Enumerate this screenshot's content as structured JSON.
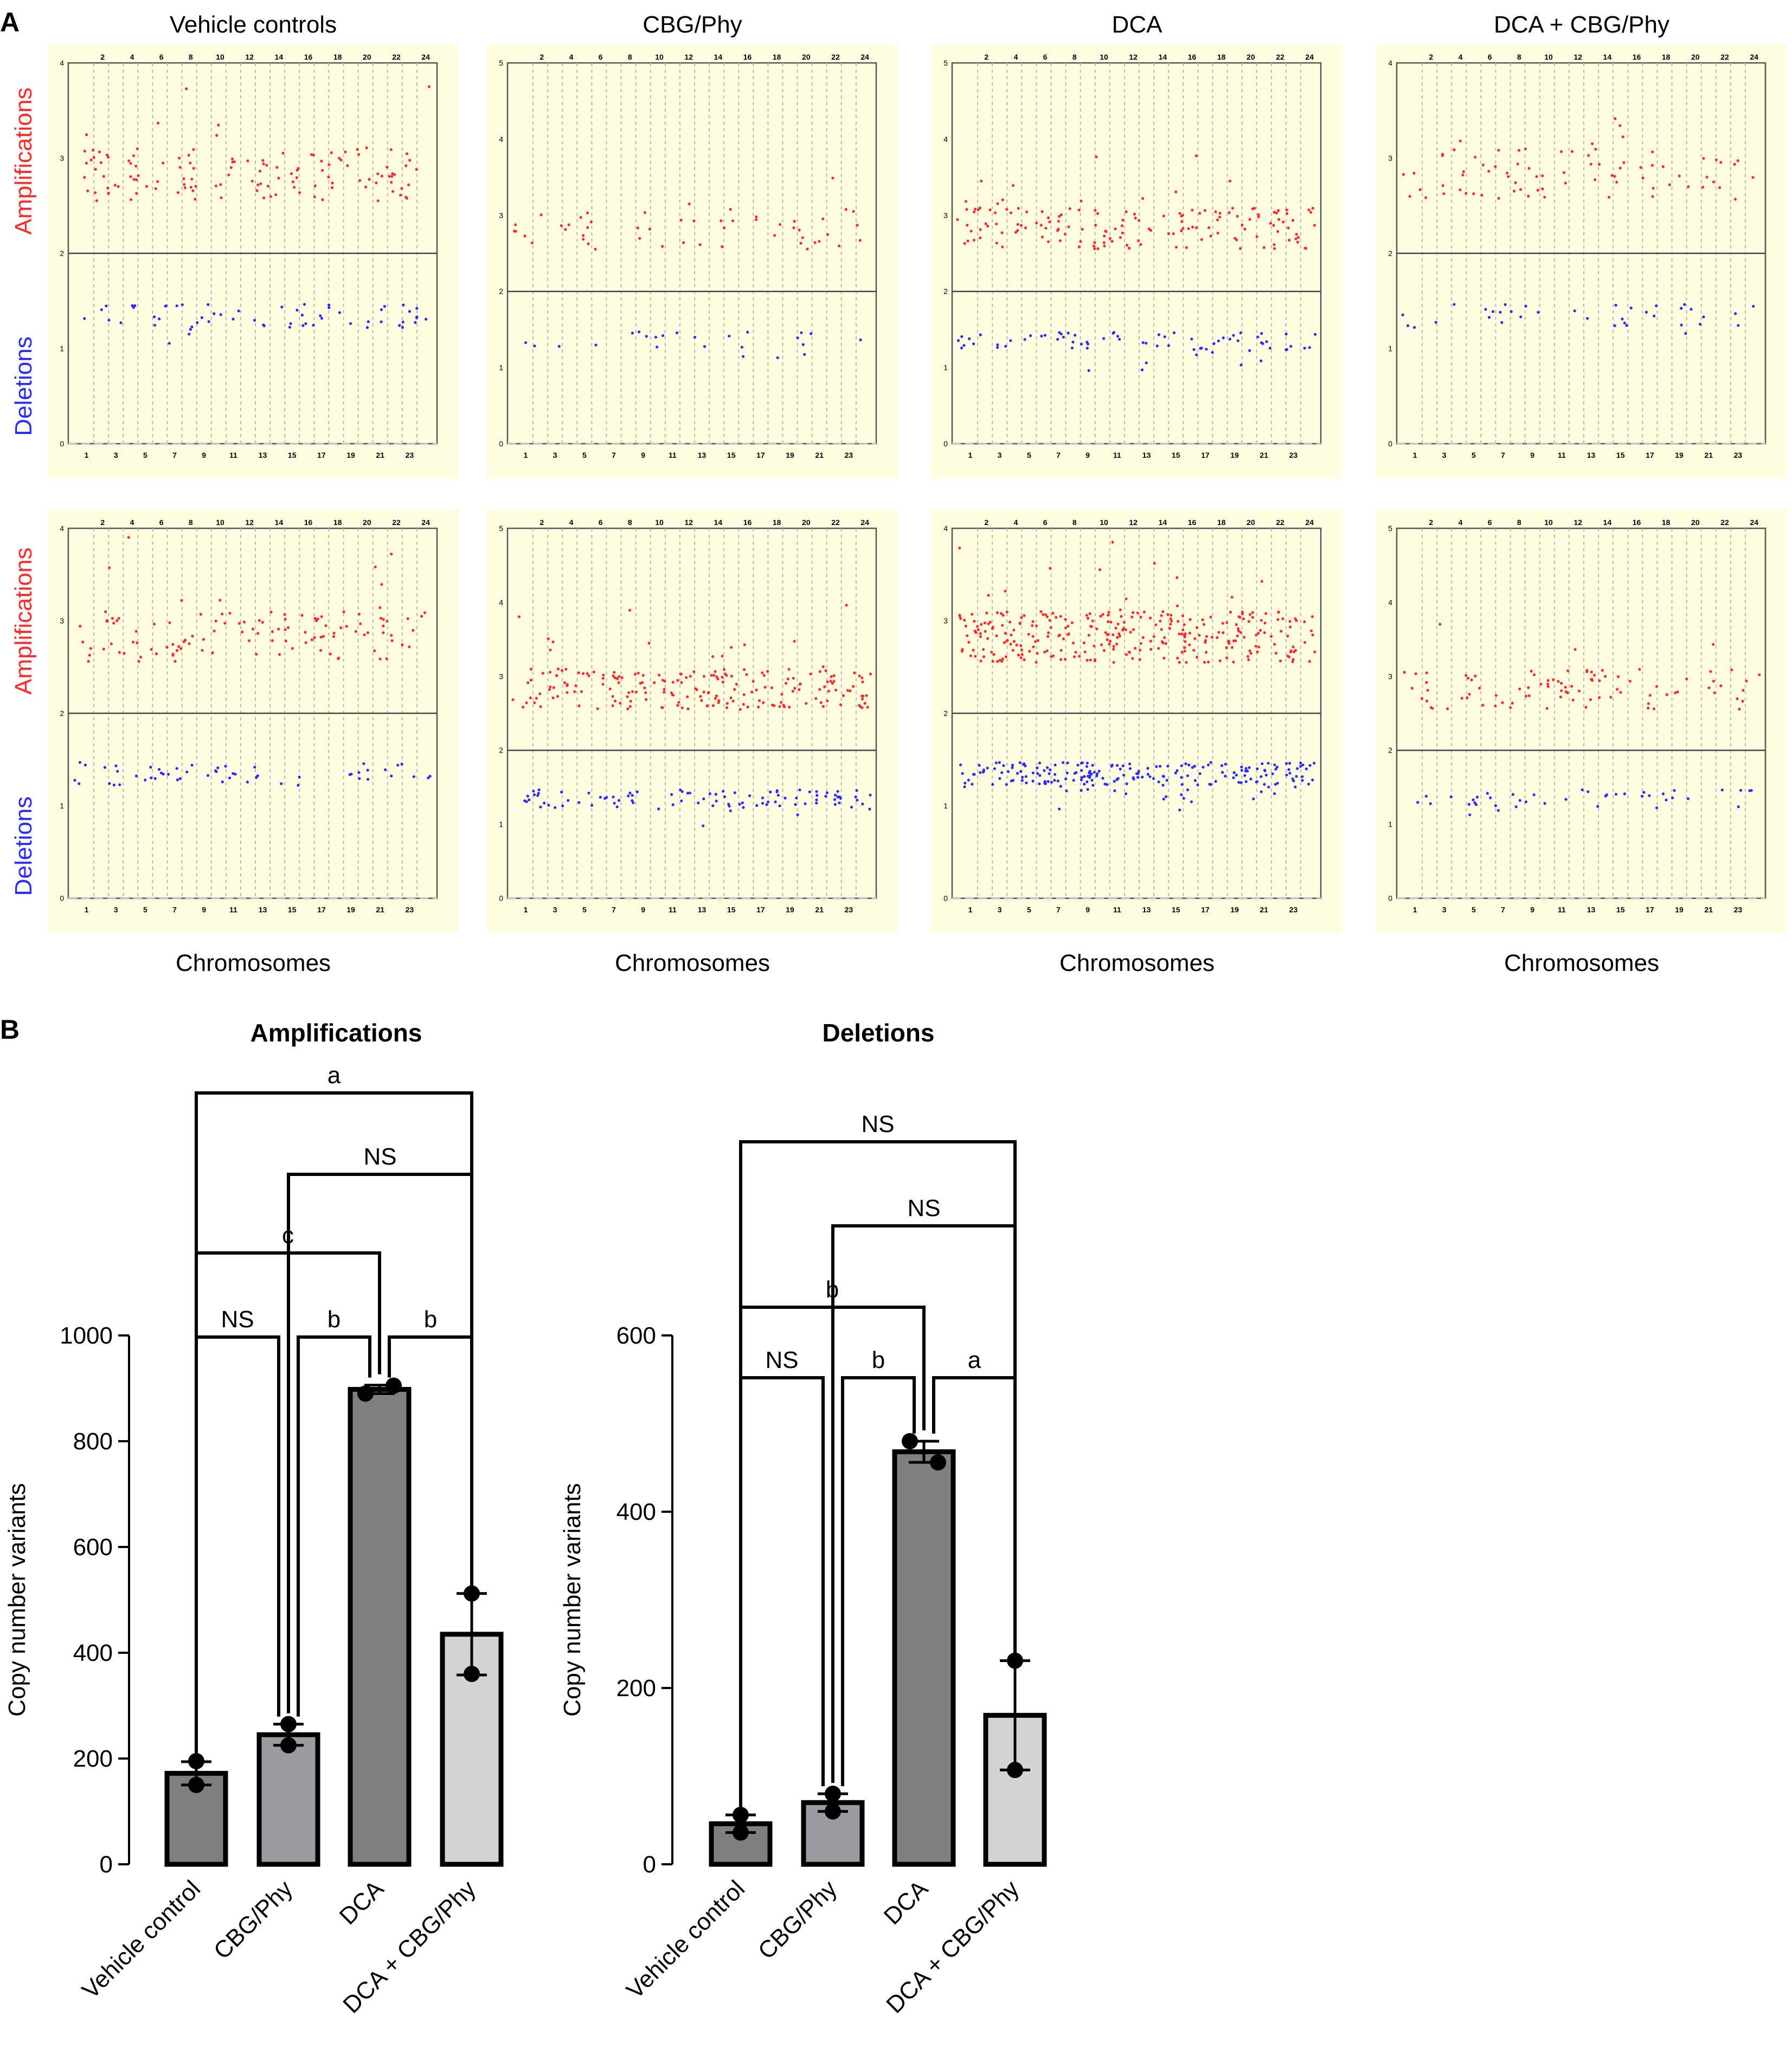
{
  "panel_a": {
    "letter": "A",
    "column_titles": [
      "Vehicle controls",
      "CBG/Phy",
      "DCA",
      "DCA + CBG/Phy"
    ],
    "row_label_amp": "Amplifications",
    "row_label_del": "Deletions",
    "x_caption": "Chromosomes",
    "colors": {
      "background": "#fffde0",
      "amplification": "#ff2a2a",
      "deletion": "#2a2aff",
      "frame": "#555555"
    },
    "top_axis_ticks": [
      "2",
      "4",
      "6",
      "8",
      "10",
      "12",
      "14",
      "16",
      "18",
      "20",
      "22",
      "24"
    ],
    "bottom_axis_ticks": [
      "1",
      "3",
      "5",
      "7",
      "9",
      "11",
      "13",
      "15",
      "17",
      "19",
      "21",
      "23"
    ],
    "density": [
      [
        1.0,
        0.4,
        1.2,
        0.6
      ],
      [
        0.9,
        1.6,
        2.4,
        0.7
      ]
    ],
    "ymax": [
      [
        4,
        5,
        5,
        4
      ],
      [
        4,
        5,
        4,
        5
      ]
    ]
  },
  "panel_b": {
    "letter": "B",
    "ylabel": "Copy number variants",
    "colors": {
      "bar1": "#7f7f7f",
      "bar2": "#9a9aa0",
      "bar3": "#808080",
      "bar4": "#d3d3d3"
    }
  },
  "chart_data": [
    {
      "type": "bar",
      "title": "Amplifications",
      "categories": [
        "Vehicle control",
        "CBG/Phy",
        "DCA",
        "DCA + CBG/Phy"
      ],
      "values": [
        172,
        245,
        898,
        435
      ],
      "error": [
        22,
        20,
        8,
        77
      ],
      "points": [
        [
          195,
          150
        ],
        [
          265,
          225
        ],
        [
          890,
          905
        ],
        [
          512,
          360
        ]
      ],
      "ylabel": "Copy number variants",
      "ylim": [
        0,
        1000
      ],
      "yticks": [
        0,
        200,
        400,
        600,
        800,
        1000
      ],
      "significance": [
        {
          "pair": [
            0,
            3
          ],
          "label": "a"
        },
        {
          "pair": [
            1,
            3
          ],
          "label": "NS"
        },
        {
          "pair": [
            0,
            2
          ],
          "label": "c"
        },
        {
          "pair": [
            0,
            1
          ],
          "label": "NS"
        },
        {
          "pair": [
            1,
            2
          ],
          "label": "b"
        },
        {
          "pair": [
            2,
            3
          ],
          "label": "b"
        }
      ]
    },
    {
      "type": "bar",
      "title": "Deletions",
      "categories": [
        "Vehicle control",
        "CBG/Phy",
        "DCA",
        "DCA + CBG/Phy"
      ],
      "values": [
        46,
        70,
        468,
        169
      ],
      "error": [
        10,
        10,
        12,
        62
      ],
      "points": [
        [
          56,
          36
        ],
        [
          80,
          60
        ],
        [
          480,
          456
        ],
        [
          231,
          107
        ]
      ],
      "ylabel": "Copy number variants",
      "ylim": [
        0,
        600
      ],
      "yticks": [
        0,
        200,
        400,
        600
      ],
      "significance": [
        {
          "pair": [
            0,
            3
          ],
          "label": "NS"
        },
        {
          "pair": [
            1,
            3
          ],
          "label": "NS"
        },
        {
          "pair": [
            0,
            2
          ],
          "label": "b"
        },
        {
          "pair": [
            0,
            1
          ],
          "label": "NS"
        },
        {
          "pair": [
            1,
            2
          ],
          "label": "b"
        },
        {
          "pair": [
            2,
            3
          ],
          "label": "a"
        }
      ]
    }
  ]
}
